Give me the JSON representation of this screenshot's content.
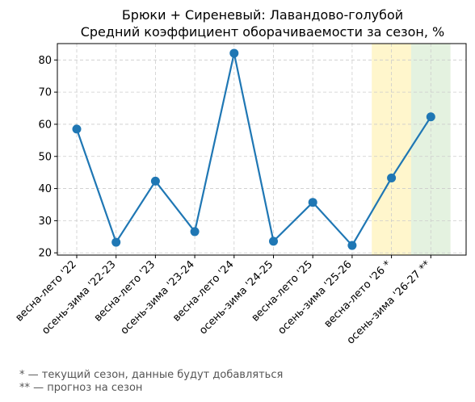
{
  "chart_data": {
    "type": "line",
    "title": "Брюки + Сиреневый: Лавандово-голубой",
    "subtitle": "Средний коэффициент оборачиваемости за сезон, %",
    "xlabel": "",
    "ylabel": "",
    "categories": [
      "весна-лето '22",
      "осень-зима '22-23",
      "весна-лето '23",
      "осень-зима '23-24",
      "весна-лето '24",
      "осень-зима '24-25",
      "весна-лето '25",
      "осень-зима '25-26",
      "весна-лето '26 *",
      "осень-зима '26-27 **"
    ],
    "values": [
      58.5,
      23.3,
      42.3,
      26.6,
      82.1,
      23.6,
      35.7,
      22.3,
      43.3,
      62.3
    ],
    "ylim": [
      19.3,
      85.1
    ],
    "yticks": [
      20,
      30,
      40,
      50,
      60,
      70,
      80
    ],
    "grid": true,
    "line_color": "#1f77b4",
    "highlights": [
      {
        "index": 8,
        "color": "#fff6cc"
      },
      {
        "index": 9,
        "color": "#e4f2e0"
      }
    ]
  },
  "footnotes": {
    "current": "* — текущий сезон, данные будут добавляться",
    "forecast": "** — прогноз на сезон"
  }
}
